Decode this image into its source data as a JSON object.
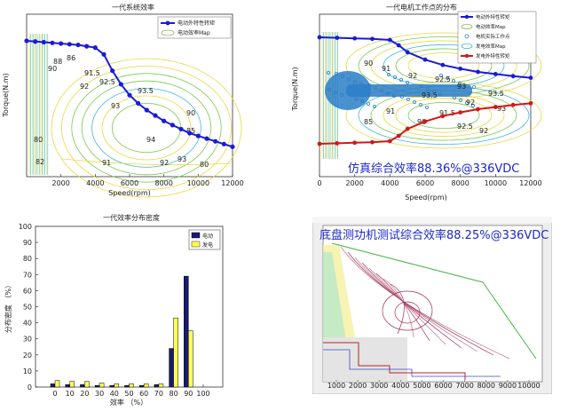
{
  "chart_data": [
    {
      "type": "line",
      "title": "一代系统效率",
      "xlabel": "Speed(rpm)",
      "ylabel": "Torque(N.m)",
      "xlim": [
        0,
        12000
      ],
      "xticks": [
        2000,
        4000,
        6000,
        8000,
        10000,
        12000
      ],
      "legend": {
        "placement": "top-right",
        "entries": [
          "电动外特性转矩",
          "电动效率Map"
        ]
      },
      "series": [
        {
          "name": "电动外特性转矩",
          "color": "#1a1adc",
          "x": [
            0,
            500,
            1000,
            1500,
            2000,
            2500,
            3000,
            3500,
            4000,
            4500,
            5000,
            5500,
            6000,
            6500,
            7000,
            7500,
            8000,
            8500,
            9000,
            9500,
            10000,
            10500,
            11000,
            11500,
            12000
          ],
          "y": [
            1.0,
            0.995,
            0.99,
            0.985,
            0.98,
            0.975,
            0.97,
            0.96,
            0.95,
            0.9,
            0.78,
            0.68,
            0.6,
            0.54,
            0.49,
            0.45,
            0.41,
            0.38,
            0.35,
            0.32,
            0.3,
            0.28,
            0.26,
            0.24,
            0.22
          ]
        }
      ],
      "contour_labels": [
        "88",
        "90",
        "91.5",
        "92",
        "92.5",
        "93",
        "93.5",
        "94",
        "80",
        "82",
        "86",
        "91",
        "92",
        "93",
        "90",
        "85",
        "80"
      ]
    },
    {
      "type": "line",
      "title": "一代电机工作点的分布",
      "xlabel": "Speed(rpm)",
      "ylabel": "Torque(N.m)",
      "xlim": [
        0,
        12000
      ],
      "xticks": [
        2000,
        4000,
        6000,
        8000,
        10000,
        12000
      ],
      "legend": {
        "placement": "top-right",
        "entries": [
          "电动外特性转矩",
          "电动效率Map",
          "电机实际工作点",
          "发电效率Map",
          "发电外特性转矩"
        ]
      },
      "annotation": "仿真综合效率88.36%@336VDC",
      "series": [
        {
          "name": "电动外特性转矩",
          "color": "#1a1adc",
          "x": [
            0,
            1000,
            2000,
            3000,
            4000,
            4500,
            5000,
            6000,
            7000,
            8000,
            9000,
            10000,
            11000,
            12000
          ],
          "y": [
            1.0,
            0.99,
            0.98,
            0.97,
            0.95,
            0.85,
            0.72,
            0.58,
            0.48,
            0.41,
            0.35,
            0.31,
            0.27,
            0.24
          ]
        },
        {
          "name": "发电外特性转矩",
          "color": "#d01818",
          "x": [
            0,
            1000,
            2000,
            3000,
            4000,
            4500,
            5000,
            6000,
            7000,
            8000,
            9000,
            10000,
            11000,
            12000
          ],
          "y": [
            -1.0,
            -0.99,
            -0.98,
            -0.97,
            -0.95,
            -0.85,
            -0.72,
            -0.58,
            -0.48,
            -0.41,
            -0.35,
            -0.31,
            -0.27,
            -0.24
          ]
        }
      ],
      "contour_labels": [
        "90",
        "91",
        "92",
        "92.5",
        "93",
        "93.5",
        "92",
        "91",
        "85",
        "90",
        "91.5",
        "92.5",
        "93.5",
        "93",
        "92"
      ]
    },
    {
      "type": "bar",
      "title": "一代效率分布密度",
      "xlabel": "效率 （%）",
      "ylabel": "分布密度 （%）",
      "ylim": [
        0,
        100
      ],
      "yticks": [
        0,
        10,
        20,
        30,
        40,
        50,
        60,
        70,
        80,
        90,
        100
      ],
      "categories": [
        "0",
        "10",
        "20",
        "30",
        "40",
        "50",
        "60",
        "70",
        "80",
        "90",
        "100"
      ],
      "legend": {
        "placement": "top-right",
        "entries": [
          "电动",
          "发电"
        ]
      },
      "series": [
        {
          "name": "电动",
          "color": "#1a1a6e",
          "values": [
            2,
            1.5,
            1.5,
            1,
            1,
            1,
            1,
            1.5,
            24,
            69,
            0
          ]
        },
        {
          "name": "发电",
          "color": "#ffff55",
          "values": [
            4,
            3.5,
            3.5,
            2.5,
            2,
            2,
            2,
            2,
            43,
            35,
            0
          ]
        }
      ]
    },
    {
      "type": "line",
      "title": "底盘测功机测试综合效率88.25%@336VDC",
      "xticks": [
        1000,
        2000,
        3000,
        4000,
        5000,
        6000,
        7000,
        8000,
        9000,
        10000
      ]
    }
  ],
  "colors": {
    "motor_curve": "#1a1adc",
    "gen_curve": "#d01818",
    "annotation": "#1a28c8",
    "contour_yellow": "#e8d840",
    "contour_green": "#78c850",
    "contour_cyan": "#40b8d8",
    "work_points": "#2a7ec8"
  }
}
